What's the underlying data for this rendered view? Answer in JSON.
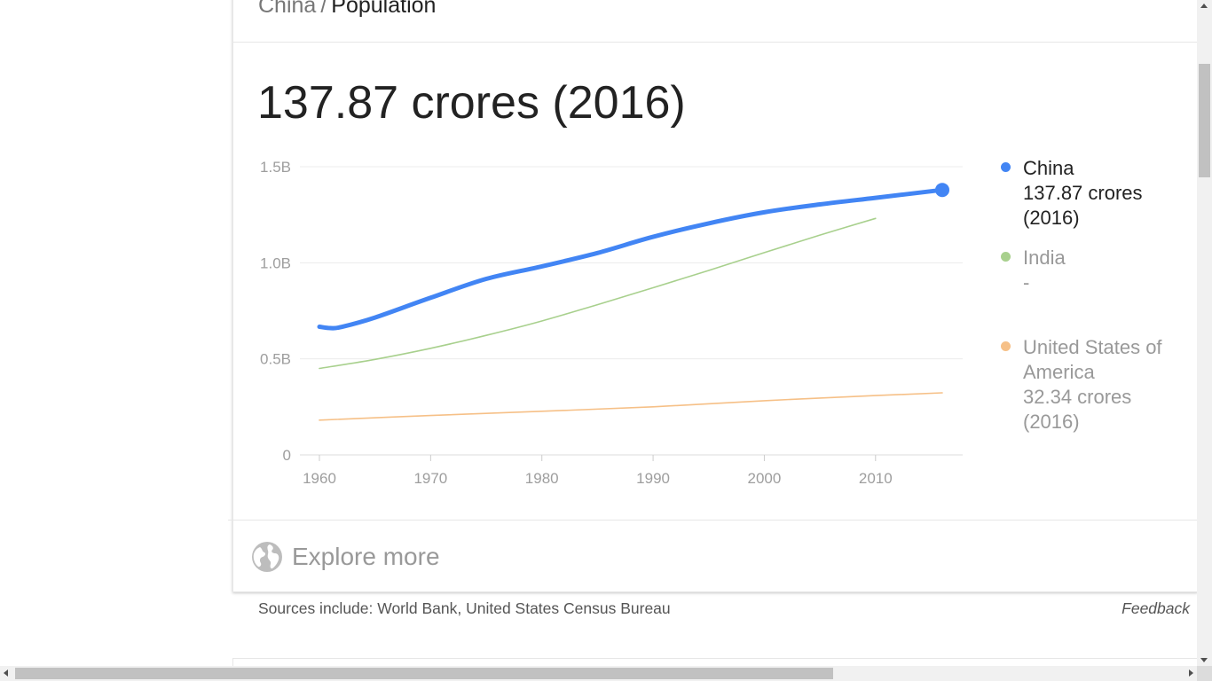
{
  "breadcrumb": {
    "country": "China",
    "separator": "/",
    "topic": "Population"
  },
  "headline": "137.87 crores (2016)",
  "legend": [
    {
      "name": "China",
      "value": "137.87 crores (2016)",
      "value_lines": [
        "137.87 crores",
        "(2016)"
      ],
      "color": "#4285f4",
      "state": "active"
    },
    {
      "name": "India",
      "value": "-",
      "value_lines": [
        "-"
      ],
      "color": "#a8d08d",
      "state": "dim"
    },
    {
      "name_lines": [
        "United States of",
        "America"
      ],
      "name": "United States of America",
      "value": "32.34 crores (2016)",
      "value_lines": [
        "32.34 crores",
        "(2016)"
      ],
      "color": "#f6c087",
      "state": "dim"
    }
  ],
  "explore_more": {
    "label": "Explore more",
    "icon": "globe-icon"
  },
  "footer": {
    "sources": "Sources include: World Bank, United States Census Bureau",
    "feedback": "Feedback"
  },
  "chart_data": {
    "type": "line",
    "title": "",
    "xlabel": "",
    "ylabel": "",
    "x_ticks": [
      1960,
      1970,
      1980,
      1990,
      2000,
      2010
    ],
    "y_ticks": [
      0,
      0.5,
      1.0,
      1.5
    ],
    "y_tick_labels": [
      "0",
      "0.5B",
      "1.0B",
      "1.5B"
    ],
    "xlim": [
      1960,
      2016
    ],
    "ylim": [
      0,
      1.5
    ],
    "grid": true,
    "legend_position": "right",
    "series": [
      {
        "name": "China",
        "color": "#4285f4",
        "emphasized": true,
        "x": [
          1960,
          1961,
          1962,
          1965,
          1970,
          1975,
          1980,
          1985,
          1990,
          1995,
          2000,
          2005,
          2010,
          2016
        ],
        "y": [
          0.667,
          0.66,
          0.666,
          0.715,
          0.818,
          0.916,
          0.981,
          1.051,
          1.135,
          1.205,
          1.263,
          1.304,
          1.338,
          1.379
        ]
      },
      {
        "name": "India",
        "color": "#a8d08d",
        "emphasized": false,
        "x": [
          1960,
          1965,
          1970,
          1975,
          1980,
          1985,
          1990,
          1995,
          2000,
          2005,
          2010
        ],
        "y": [
          0.45,
          0.497,
          0.555,
          0.622,
          0.697,
          0.782,
          0.87,
          0.96,
          1.053,
          1.144,
          1.231
        ]
      },
      {
        "name": "United States of America",
        "color": "#f6c087",
        "emphasized": false,
        "x": [
          1960,
          1970,
          1980,
          1990,
          2000,
          2010,
          2016
        ],
        "y": [
          0.181,
          0.205,
          0.227,
          0.25,
          0.282,
          0.309,
          0.323
        ]
      }
    ]
  }
}
